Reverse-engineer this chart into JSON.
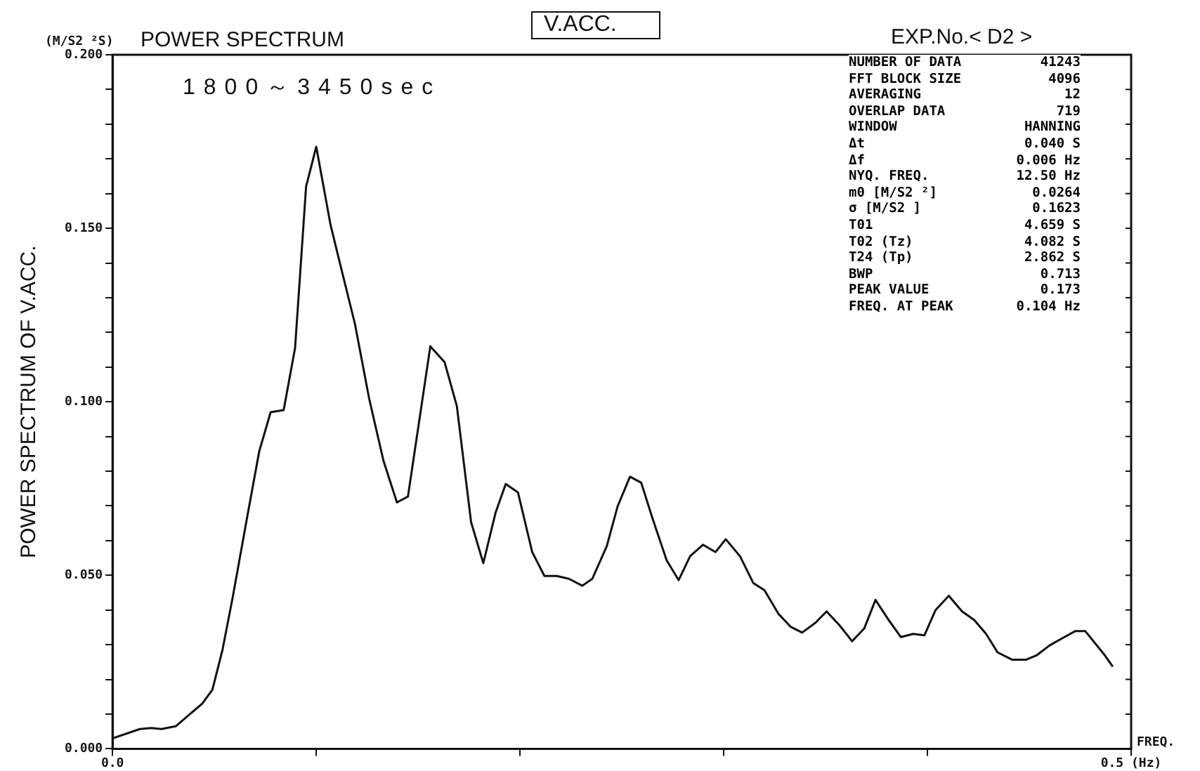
{
  "chart_data": {
    "type": "line",
    "title": "POWER SPECTRUM",
    "subtitle": "V.ACC.",
    "xlabel": "FREQ.",
    "ylabel": "POWER SPECTRUM OF V.ACC.",
    "annotations": [
      "(M/S2 ²S)",
      "1800～3450sec",
      "EXP.No.< D2 >",
      "NUMBER OF DATA",
      "41243",
      "FFT BLOCK SIZE",
      "4096",
      "AVERAGING",
      "12",
      "OVERLAP DATA",
      "719",
      "WINDOW",
      "HANNING",
      "Δt",
      "0.040 S",
      "Δf",
      "0.006 Hz",
      "NYQ. FREQ.",
      "12.50 Hz",
      "m0 [M/S2 ²]",
      "0.0264",
      "σ [M/S2 ]",
      "0.1623",
      "T01",
      "4.659 S",
      "T02 (Tz)",
      "4.082 S",
      "T24 (Tp)",
      "2.862 S",
      "BWP",
      "0.713",
      "PEAK VALUE",
      "0.173",
      "FREQ. AT PEAK",
      "0.104 Hz"
    ],
    "x": [
      0,
      0.0134,
      0.019,
      0.024,
      0.031,
      0.038,
      0.044,
      0.049,
      0.054,
      0.059,
      0.066,
      0.072,
      0.0776,
      0.084,
      0.0896,
      0.095,
      0.1,
      0.107,
      0.112,
      0.119,
      0.126,
      0.133,
      0.1396,
      0.145,
      0.156,
      0.163,
      0.169,
      0.176,
      0.182,
      0.188,
      0.193,
      0.199,
      0.206,
      0.212,
      0.218,
      0.224,
      0.2306,
      0.2355,
      0.2426,
      0.248,
      0.254,
      0.2595,
      0.265,
      0.272,
      0.2779,
      0.2835,
      0.2898,
      0.296,
      0.301,
      0.308,
      0.3145,
      0.32,
      0.327,
      0.333,
      0.3385,
      0.345,
      0.3505,
      0.357,
      0.363,
      0.369,
      0.3745,
      0.381,
      0.387,
      0.393,
      0.3985,
      0.404,
      0.4105,
      0.417,
      0.423,
      0.4288,
      0.4344,
      0.4415,
      0.4485,
      0.4535,
      0.46,
      0.466,
      0.4725,
      0.4775,
      0.4866,
      0.491
    ],
    "series": [
      {
        "color": "#111111",
        "values": [
          0.003,
          0.0057,
          0.006,
          0.0057,
          0.0065,
          0.01,
          0.013,
          0.017,
          0.0286,
          0.0437,
          0.0665,
          0.0857,
          0.097,
          0.0976,
          0.1155,
          0.162,
          0.1735,
          0.151,
          0.139,
          0.1224,
          0.1008,
          0.083,
          0.071,
          0.0727,
          0.116,
          0.1114,
          0.0988,
          0.0653,
          0.0535,
          0.068,
          0.0763,
          0.0739,
          0.0567,
          0.0498,
          0.0498,
          0.049,
          0.047,
          0.049,
          0.0584,
          0.07,
          0.0784,
          0.0767,
          0.0665,
          0.0543,
          0.0486,
          0.0555,
          0.0588,
          0.0567,
          0.0604,
          0.0555,
          0.0478,
          0.0457,
          0.0388,
          0.0351,
          0.0335,
          0.0363,
          0.0396,
          0.0355,
          0.031,
          0.0347,
          0.0429,
          0.0371,
          0.0322,
          0.0331,
          0.0327,
          0.04,
          0.0441,
          0.0396,
          0.0371,
          0.0331,
          0.0278,
          0.0257,
          0.0257,
          0.0269,
          0.0298,
          0.0318,
          0.0339,
          0.0339,
          0.0273,
          0.0237
        ]
      }
    ],
    "xlim": [
      0,
      0.5
    ],
    "xticks": [
      {
        "value": 0,
        "label": "0.0"
      },
      {
        "value": 0.1,
        "label": null
      },
      {
        "value": 0.2,
        "label": null
      },
      {
        "value": 0.3,
        "label": null
      },
      {
        "value": 0.4,
        "label": null
      },
      {
        "value": 0.5,
        "label": "0.5 (Hz)"
      }
    ],
    "ylim": [
      0,
      0.2
    ],
    "yticks": [
      {
        "value": 0,
        "label": "0.000"
      },
      {
        "value": 0.01,
        "label": null
      },
      {
        "value": 0.02,
        "label": null
      },
      {
        "value": 0.03,
        "label": null
      },
      {
        "value": 0.04,
        "label": null
      },
      {
        "value": 0.05,
        "label": "0.050"
      },
      {
        "value": 0.06,
        "label": null
      },
      {
        "value": 0.07,
        "label": null
      },
      {
        "value": 0.08,
        "label": null
      },
      {
        "value": 0.09,
        "label": null
      },
      {
        "value": 0.1,
        "label": "0.100"
      },
      {
        "value": 0.11,
        "label": null
      },
      {
        "value": 0.12,
        "label": null
      },
      {
        "value": 0.13,
        "label": null
      },
      {
        "value": 0.14,
        "label": null
      },
      {
        "value": 0.15,
        "label": "0.150"
      },
      {
        "value": 0.16,
        "label": null
      },
      {
        "value": 0.17,
        "label": null
      },
      {
        "value": 0.18,
        "label": null
      },
      {
        "value": 0.19,
        "label": null
      },
      {
        "value": 0.2,
        "label": "0.200"
      }
    ],
    "grid": false,
    "legend": false,
    "marker": "none",
    "line_style": "solid"
  }
}
